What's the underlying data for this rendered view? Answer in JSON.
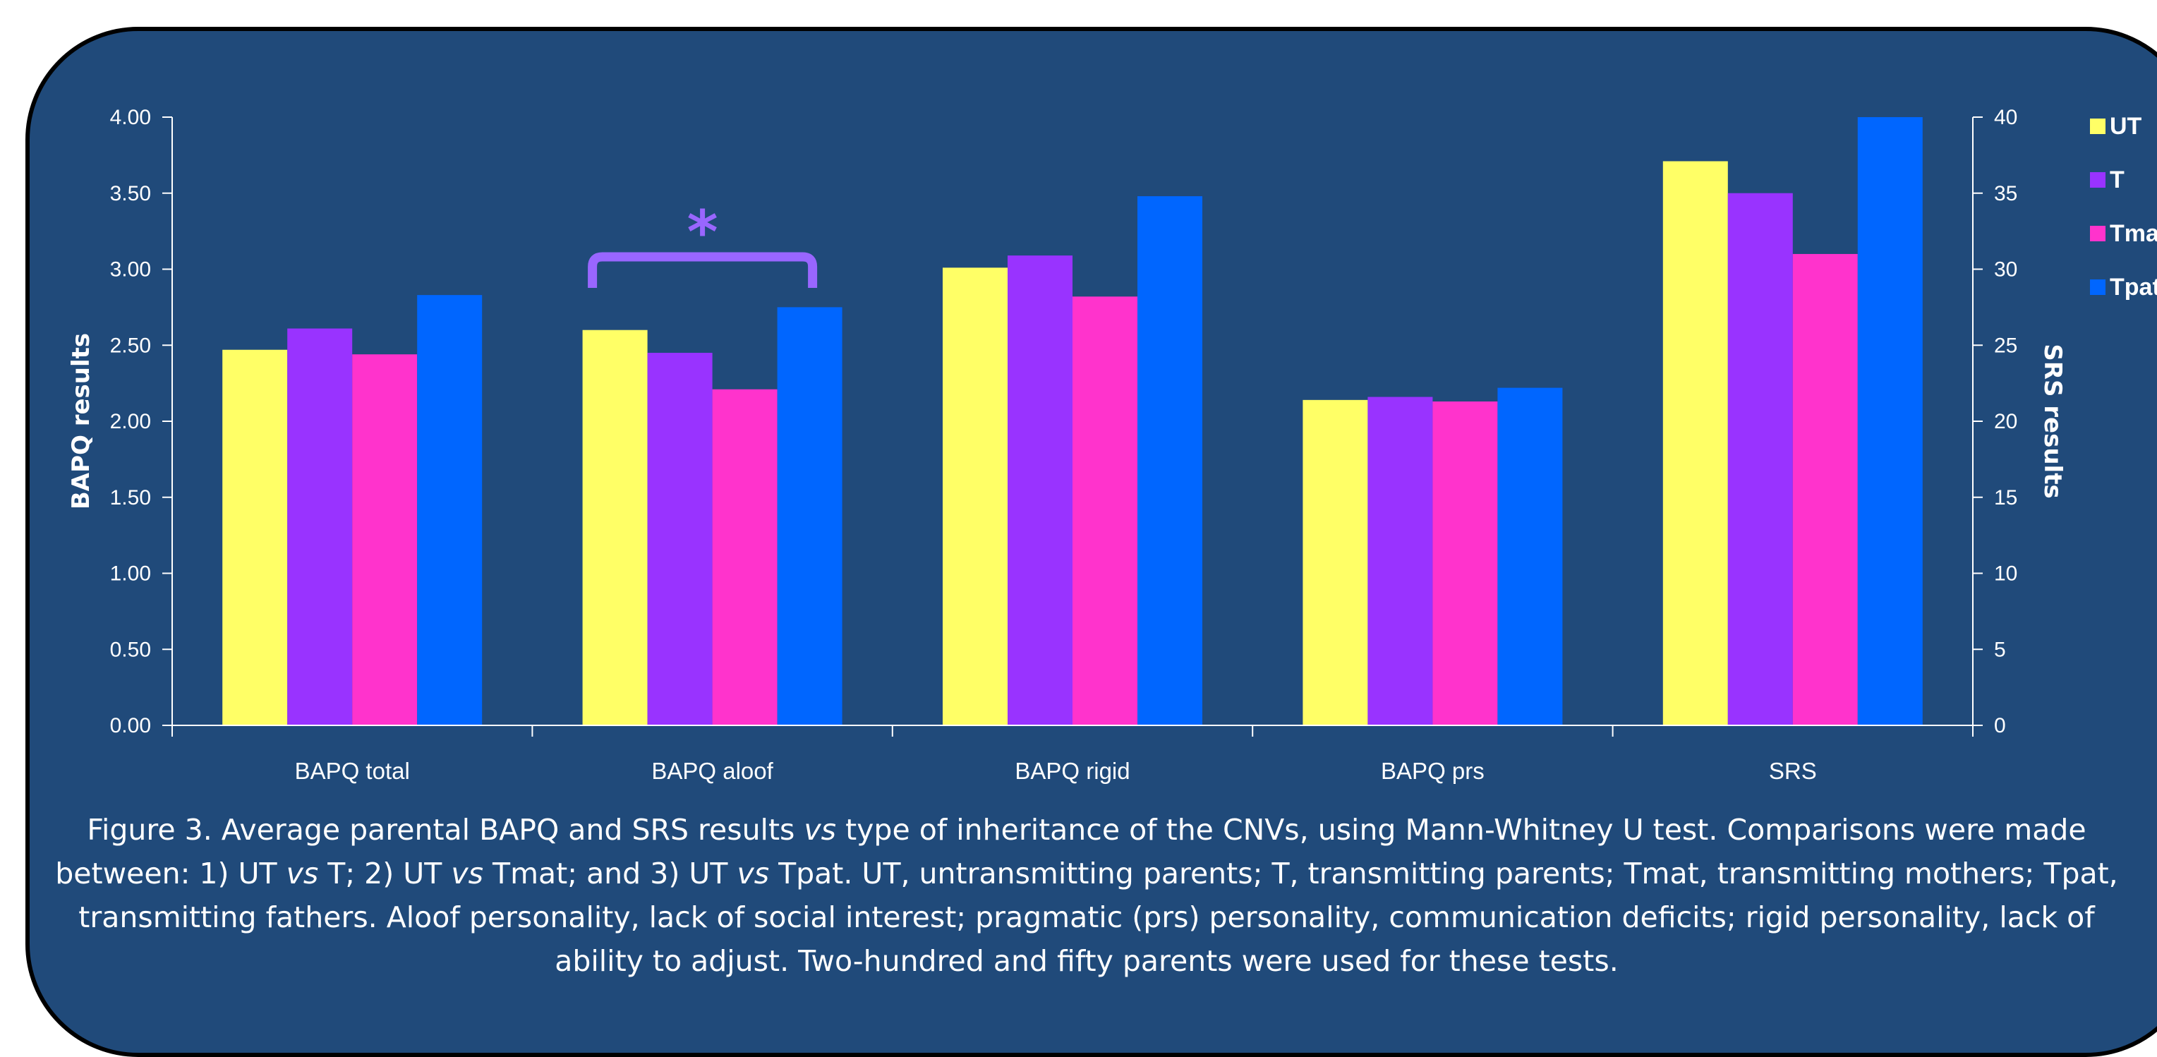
{
  "chart_data": {
    "type": "bar",
    "categories": [
      "BAPQ total",
      "BAPQ aloof",
      "BAPQ rigid",
      "BAPQ prs",
      "SRS"
    ],
    "series": [
      {
        "name": "UT",
        "color": "#ffff66",
        "values": [
          2.47,
          2.6,
          3.01,
          2.14,
          3.71
        ]
      },
      {
        "name": "T",
        "color": "#9933ff",
        "values": [
          2.61,
          2.45,
          3.09,
          2.16,
          3.5
        ]
      },
      {
        "name": "Tmat",
        "color": "#ff33cc",
        "values": [
          2.44,
          2.21,
          2.82,
          2.13,
          3.1
        ]
      },
      {
        "name": "Tpat",
        "color": "#0066ff",
        "values": [
          2.83,
          2.75,
          3.48,
          2.22,
          4.0
        ]
      }
    ],
    "srs_values": {
      "UT": 37.1,
      "T": 35.0,
      "Tmat": 31.0,
      "Tpat": 40.0
    },
    "y_left": {
      "label": "BAPQ results",
      "range": [
        0,
        4
      ],
      "ticks": [
        "0.00",
        "0.50",
        "1.00",
        "1.50",
        "2.00",
        "2.50",
        "3.00",
        "3.50",
        "4.00"
      ]
    },
    "y_right": {
      "label": "SRS results",
      "range": [
        0,
        40
      ],
      "ticks": [
        "0",
        "5",
        "10",
        "15",
        "20",
        "25",
        "30",
        "35",
        "40"
      ]
    },
    "legend_position": "right",
    "grid": false,
    "annotation": {
      "text": "*",
      "between": [
        "UT",
        "Tpat"
      ],
      "category": "BAPQ aloof",
      "color": "#9966ff"
    }
  },
  "caption": {
    "prefix": "Figure 3. Average parental BAPQ and SRS results ",
    "vs1": "vs",
    "middle1": " type of inheritance of the CNVs, using Mann-Whitney U test. Comparisons were made between: 1) UT ",
    "vs2": "vs",
    "middle2": " T; 2) UT ",
    "vs3": "vs",
    "middle3": " Tmat; and 3) UT ",
    "vs4": "vs",
    "suffix": " Tpat. UT, untransmitting parents; T, transmitting parents; Tmat, transmitting mothers; Tpat, transmitting fathers. Aloof personality, lack of social interest; pragmatic (prs) personality, communication deficits; rigid personality, lack of ability to adjust. Two-hundred and fifty parents were used for these tests."
  },
  "colors": {
    "panel_background": "#204a7a",
    "axis": "#ffffff"
  }
}
